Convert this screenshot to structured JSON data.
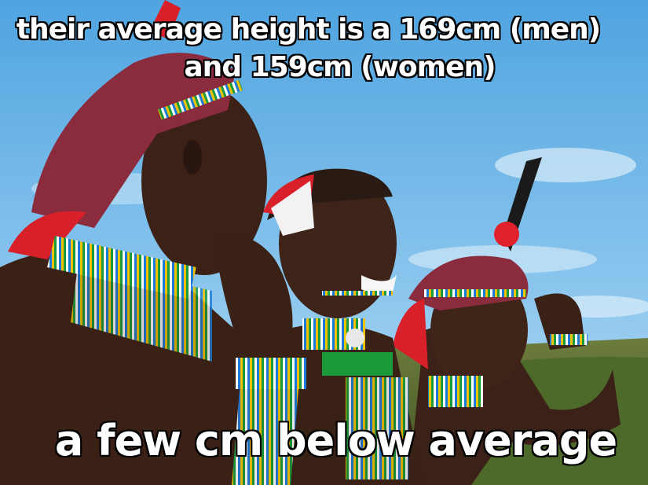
{
  "meme": {
    "top_caption_line1": "their average height is a 169cm (men)",
    "top_caption_line2": "and 159cm (women)",
    "bottom_caption": "a few cm below average"
  },
  "colors": {
    "sky": "#6fb6e8",
    "caption_text": "#ffffff",
    "caption_outline": "#000000",
    "headwrap": "#8a2c3e",
    "beads_red": "#d8202a",
    "skin": "#3a2116"
  }
}
